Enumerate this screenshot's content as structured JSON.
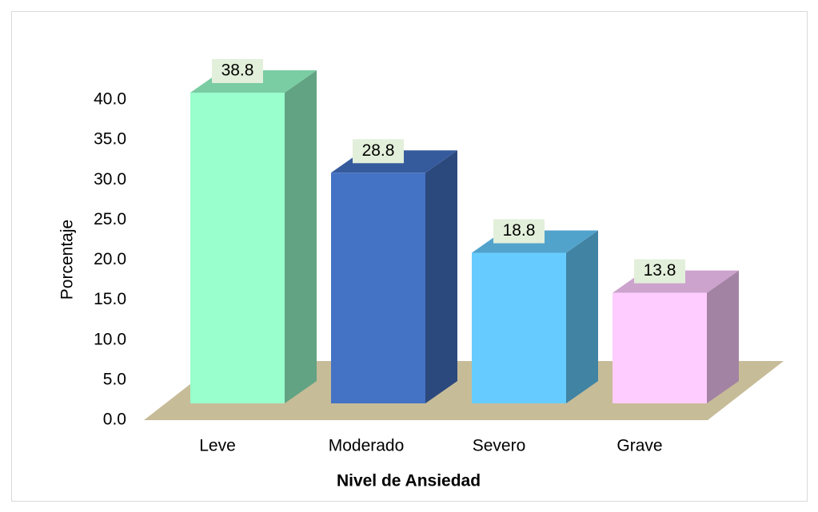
{
  "chart_data": {
    "type": "bar3d",
    "categories": [
      "Leve",
      "Moderado",
      "Severo",
      "Grave"
    ],
    "values": [
      38.8,
      28.8,
      18.8,
      13.8
    ],
    "colors": [
      "#99ffcc",
      "#4472c4",
      "#66ccff",
      "#ffccff"
    ],
    "x_label": "Nivel de Ansiedad",
    "y_label": "Porcentaje",
    "ylim": [
      0,
      40
    ],
    "yticks": [
      {
        "value": 0,
        "label": "0.0"
      },
      {
        "value": 5,
        "label": "5.0"
      },
      {
        "value": 10,
        "label": "10.0"
      },
      {
        "value": 15,
        "label": "15.0"
      },
      {
        "value": 20,
        "label": "20.0"
      },
      {
        "value": 25,
        "label": "25.0"
      },
      {
        "value": 30,
        "label": "30.0"
      },
      {
        "value": 35,
        "label": "35.0"
      },
      {
        "value": 40,
        "label": "40.0"
      }
    ]
  }
}
